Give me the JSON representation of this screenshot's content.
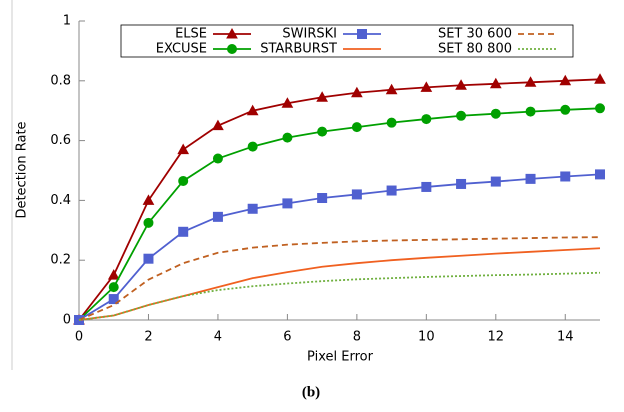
{
  "chart_data": {
    "type": "line",
    "x_label": "Pixel Error",
    "y_label": "Detection Rate",
    "caption": "(b)",
    "x": [
      0,
      1,
      2,
      3,
      4,
      5,
      6,
      7,
      8,
      9,
      10,
      11,
      12,
      13,
      14,
      15
    ],
    "xlim": [
      0,
      15
    ],
    "xticks": [
      0,
      2,
      4,
      6,
      8,
      10,
      12,
      14
    ],
    "ylim": [
      0,
      1
    ],
    "yticks": [
      0,
      0.2,
      0.4,
      0.6,
      0.8,
      1
    ],
    "grid": false,
    "legend": "top",
    "series": [
      {
        "name": "ELSE",
        "color": "#a00000",
        "marker": "triangle",
        "dash": "solid",
        "values": [
          0,
          0.15,
          0.4,
          0.57,
          0.65,
          0.7,
          0.725,
          0.745,
          0.76,
          0.77,
          0.778,
          0.785,
          0.79,
          0.795,
          0.8,
          0.805
        ]
      },
      {
        "name": "EXCUSE",
        "color": "#00a000",
        "marker": "circle",
        "dash": "solid",
        "values": [
          0,
          0.11,
          0.325,
          0.465,
          0.54,
          0.58,
          0.61,
          0.63,
          0.645,
          0.66,
          0.672,
          0.683,
          0.69,
          0.697,
          0.703,
          0.708
        ]
      },
      {
        "name": "SWIRSKI",
        "color": "#5060d0",
        "marker": "square",
        "dash": "solid",
        "values": [
          0,
          0.07,
          0.205,
          0.295,
          0.345,
          0.372,
          0.39,
          0.408,
          0.42,
          0.433,
          0.445,
          0.455,
          0.463,
          0.472,
          0.48,
          0.487
        ]
      },
      {
        "name": "STARBURST",
        "color": "#f06020",
        "marker": "none",
        "dash": "solid",
        "values": [
          0,
          0.015,
          0.05,
          0.08,
          0.11,
          0.14,
          0.16,
          0.178,
          0.19,
          0.2,
          0.208,
          0.215,
          0.222,
          0.228,
          0.234,
          0.24
        ]
      },
      {
        "name": "SET 30 600",
        "color": "#c06020",
        "marker": "none",
        "dash": "dashed",
        "values": [
          0,
          0.05,
          0.135,
          0.19,
          0.225,
          0.242,
          0.252,
          0.258,
          0.263,
          0.266,
          0.268,
          0.27,
          0.272,
          0.274,
          0.276,
          0.277
        ]
      },
      {
        "name": "SET 80 800",
        "color": "#70b040",
        "marker": "none",
        "dash": "dotted",
        "values": [
          0,
          0.015,
          0.05,
          0.08,
          0.1,
          0.113,
          0.122,
          0.13,
          0.136,
          0.14,
          0.144,
          0.147,
          0.15,
          0.152,
          0.155,
          0.158
        ]
      }
    ]
  }
}
